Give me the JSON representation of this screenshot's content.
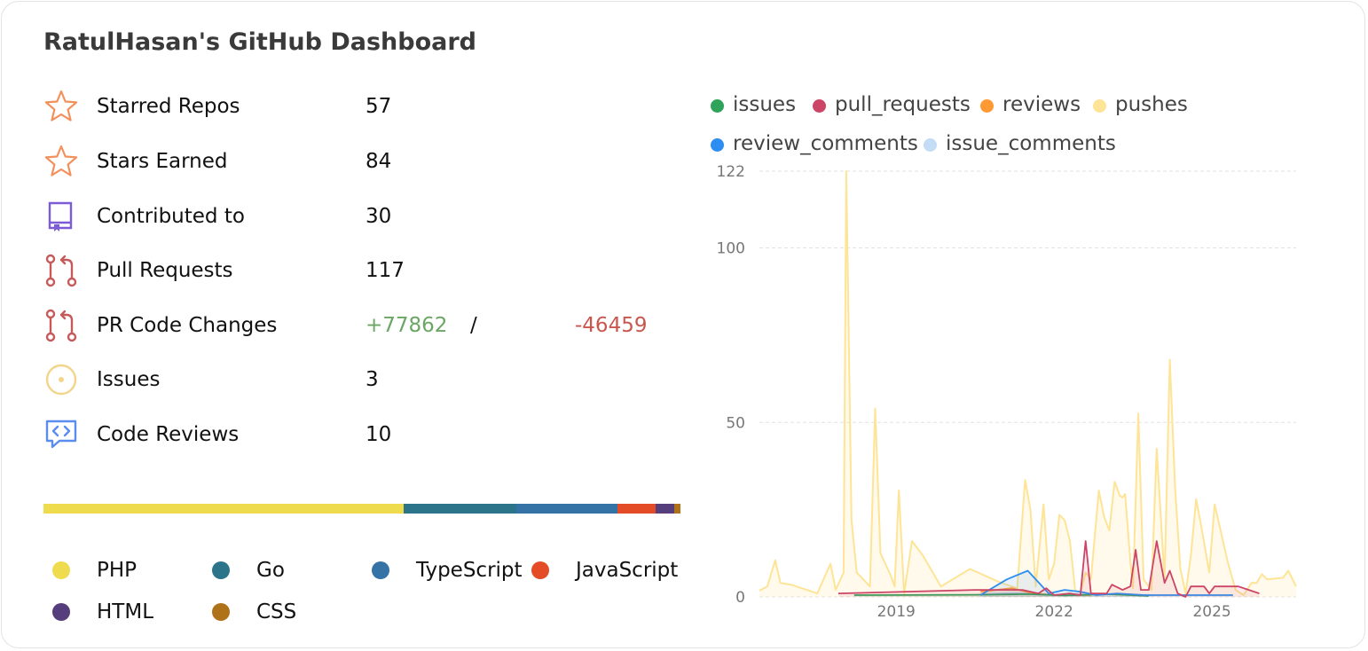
{
  "title": "RatulHasan's GitHub Dashboard",
  "stats": [
    {
      "label": "Starred Repos",
      "value": "57",
      "icon": "star-icon",
      "color": "#f3915d"
    },
    {
      "label": "Stars Earned",
      "value": "84",
      "icon": "star-icon",
      "color": "#f3915d"
    },
    {
      "label": "Contributed to",
      "value": "30",
      "icon": "repo-icon",
      "color": "#7b5cd6"
    },
    {
      "label": "Pull Requests",
      "value": "117",
      "icon": "pull-request-icon",
      "color": "#c65a5a"
    },
    {
      "label": "PR Code Changes",
      "additions": "+77862",
      "separator": "/",
      "deletions": "-46459",
      "icon": "pull-request-icon",
      "color": "#c65a5a"
    },
    {
      "label": "Issues",
      "value": "3",
      "icon": "issue-icon",
      "color": "#f2d48a"
    },
    {
      "label": "Code Reviews",
      "value": "10",
      "icon": "code-review-icon",
      "color": "#5b8def"
    }
  ],
  "languages": [
    {
      "name": "PHP",
      "color": "#eedc4e",
      "share": 0.565
    },
    {
      "name": "Go",
      "color": "#2b7489",
      "share": 0.178
    },
    {
      "name": "TypeScript",
      "color": "#3572a5",
      "share": 0.158
    },
    {
      "name": "JavaScript",
      "color": "#e34c26",
      "share": 0.06
    },
    {
      "name": "HTML",
      "color": "#563d7c",
      "share": 0.029
    },
    {
      "name": "CSS",
      "color": "#b07219",
      "share": 0.01
    }
  ],
  "chart_data": {
    "type": "area",
    "title": "",
    "xlabel": "",
    "ylabel": "",
    "ylim": [
      0,
      122
    ],
    "y_ticks": [
      "0",
      "50",
      "100",
      "122"
    ],
    "x_ticks": [
      {
        "label": "2019",
        "x": 2019
      },
      {
        "label": "2022",
        "x": 2022
      },
      {
        "label": "2025",
        "x": 2025
      }
    ],
    "xlim": [
      2016.4,
      2026.6
    ],
    "grid": true,
    "legend_position": "top",
    "series": [
      {
        "name": "issues",
        "color": "#2fa35a",
        "points": [
          [
            2018.2,
            0.5
          ],
          [
            2020.5,
            0.6
          ],
          [
            2021.5,
            0.8
          ],
          [
            2022.2,
            0.4
          ],
          [
            2023.0,
            0.8
          ],
          [
            2023.8,
            0.3
          ]
        ]
      },
      {
        "name": "pull_requests",
        "color": "#cc4466",
        "points": [
          [
            2017.9,
            1.0
          ],
          [
            2019.2,
            1.5
          ],
          [
            2020.5,
            2.0
          ],
          [
            2021.4,
            2.0
          ],
          [
            2021.7,
            1.0
          ],
          [
            2021.85,
            2.5
          ],
          [
            2022.0,
            0.5
          ],
          [
            2022.3,
            1.0
          ],
          [
            2022.5,
            0.5
          ],
          [
            2022.6,
            16.0
          ],
          [
            2022.7,
            1.0
          ],
          [
            2023.0,
            1.0
          ],
          [
            2023.1,
            3.5
          ],
          [
            2023.3,
            2.0
          ],
          [
            2023.45,
            3.0
          ],
          [
            2023.55,
            13.5
          ],
          [
            2023.65,
            2.0
          ],
          [
            2023.8,
            2.0
          ],
          [
            2023.95,
            16.0
          ],
          [
            2024.1,
            4.0
          ],
          [
            2024.2,
            7.5
          ],
          [
            2024.35,
            1.0
          ],
          [
            2024.5,
            0.0
          ],
          [
            2024.6,
            3.0
          ],
          [
            2024.85,
            3.0
          ],
          [
            2024.95,
            1.0
          ],
          [
            2025.05,
            3.0
          ],
          [
            2025.5,
            3.0
          ],
          [
            2025.9,
            1.0
          ]
        ]
      },
      {
        "name": "reviews",
        "color": "#ff9933",
        "points": [
          [
            2020.6,
            1.5
          ],
          [
            2021.2,
            2.5
          ],
          [
            2021.6,
            1.0
          ],
          [
            2022.0,
            0.5
          ],
          [
            2022.7,
            0.5
          ]
        ]
      },
      {
        "name": "pushes",
        "color": "#fde496",
        "points": [
          [
            2016.4,
            1.8
          ],
          [
            2016.55,
            3.0
          ],
          [
            2016.7,
            10.5
          ],
          [
            2016.8,
            4.0
          ],
          [
            2017.0,
            3.5
          ],
          [
            2017.3,
            2.0
          ],
          [
            2017.5,
            1.0
          ],
          [
            2017.75,
            9.5
          ],
          [
            2017.85,
            2.0
          ],
          [
            2018.0,
            7.0
          ],
          [
            2018.05,
            122.0
          ],
          [
            2018.15,
            22.0
          ],
          [
            2018.25,
            7.0
          ],
          [
            2018.5,
            3.0
          ],
          [
            2018.6,
            54.0
          ],
          [
            2018.7,
            12.5
          ],
          [
            2018.9,
            6.0
          ],
          [
            2018.97,
            3.0
          ],
          [
            2019.05,
            30.5
          ],
          [
            2019.15,
            1.0
          ],
          [
            2019.3,
            16.0
          ],
          [
            2019.5,
            12.0
          ],
          [
            2019.85,
            3.0
          ],
          [
            2020.4,
            8.0
          ],
          [
            2021.0,
            4.0
          ],
          [
            2021.3,
            2.5
          ],
          [
            2021.45,
            33.5
          ],
          [
            2021.55,
            25.0
          ],
          [
            2021.65,
            3.0
          ],
          [
            2021.8,
            26.5
          ],
          [
            2021.9,
            5.0
          ],
          [
            2022.0,
            9.5
          ],
          [
            2022.1,
            23.5
          ],
          [
            2022.2,
            22.0
          ],
          [
            2022.3,
            16.0
          ],
          [
            2022.4,
            2.0
          ],
          [
            2022.5,
            1.0
          ],
          [
            2022.6,
            7.0
          ],
          [
            2022.7,
            5.0
          ],
          [
            2022.85,
            30.5
          ],
          [
            2022.95,
            23.0
          ],
          [
            2023.05,
            19.0
          ],
          [
            2023.15,
            33.0
          ],
          [
            2023.25,
            29.0
          ],
          [
            2023.3,
            28.5
          ],
          [
            2023.35,
            29.5
          ],
          [
            2023.45,
            10.0
          ],
          [
            2023.5,
            2.5
          ],
          [
            2023.6,
            52.5
          ],
          [
            2023.7,
            5.0
          ],
          [
            2023.85,
            2.0
          ],
          [
            2023.95,
            42.5
          ],
          [
            2024.1,
            5.0
          ],
          [
            2024.2,
            68.0
          ],
          [
            2024.3,
            31.0
          ],
          [
            2024.4,
            8.0
          ],
          [
            2024.5,
            1.0
          ],
          [
            2024.6,
            12.0
          ],
          [
            2024.7,
            28.0
          ],
          [
            2024.8,
            20.0
          ],
          [
            2024.95,
            7.0
          ],
          [
            2025.05,
            26.5
          ],
          [
            2025.15,
            20.0
          ],
          [
            2025.3,
            10.0
          ],
          [
            2025.45,
            2.0
          ],
          [
            2025.6,
            0.5
          ],
          [
            2025.75,
            4.0
          ],
          [
            2025.85,
            4.0
          ],
          [
            2025.95,
            6.5
          ],
          [
            2026.05,
            5.0
          ],
          [
            2026.35,
            5.5
          ],
          [
            2026.45,
            7.5
          ],
          [
            2026.6,
            3.0
          ]
        ]
      },
      {
        "name": "review_comments",
        "color": "#2c8ef0",
        "points": [
          [
            2020.6,
            0.5
          ],
          [
            2021.1,
            5.0
          ],
          [
            2021.5,
            7.5
          ],
          [
            2021.9,
            1.0
          ],
          [
            2022.2,
            2.0
          ],
          [
            2022.5,
            1.5
          ],
          [
            2022.8,
            0.5
          ],
          [
            2023.2,
            1.0
          ],
          [
            2023.7,
            0.5
          ],
          [
            2024.0,
            0.5
          ],
          [
            2024.4,
            0.5
          ],
          [
            2024.8,
            0.5
          ],
          [
            2025.4,
            0.5
          ]
        ]
      },
      {
        "name": "issue_comments",
        "color": "#c4dcf5",
        "points": [
          [
            2020.6,
            0.8
          ],
          [
            2021.3,
            1.2
          ],
          [
            2022.0,
            0.6
          ],
          [
            2022.6,
            1.0
          ],
          [
            2023.2,
            0.8
          ],
          [
            2023.9,
            0.5
          ]
        ]
      }
    ]
  }
}
